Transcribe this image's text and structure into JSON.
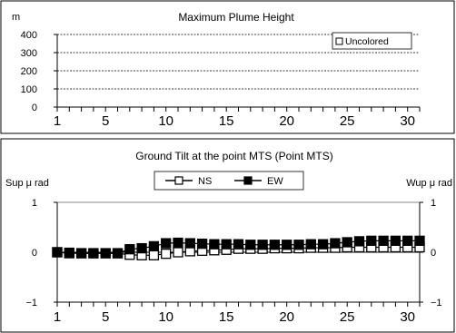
{
  "chart_data": [
    {
      "type": "bar",
      "title": "Maximum Plume Height",
      "ylabel": "m",
      "ylim": [
        0,
        400
      ],
      "yticks": [
        "400",
        "300",
        "200",
        "100",
        "0"
      ],
      "xticks": [
        "1",
        "5",
        "10",
        "15",
        "20",
        "25",
        "30"
      ],
      "xlim": [
        1,
        31
      ],
      "grid": true,
      "legend_position": "top-right",
      "series": [
        {
          "name": "Uncolored",
          "color": "#ffffff",
          "values": []
        }
      ]
    },
    {
      "type": "line",
      "title": "Ground Tilt at the point MTS (Point MTS)",
      "ylabel_left": "Sup μ rad",
      "ylabel_right": "Wup μ rad",
      "ylim": [
        -1,
        1
      ],
      "yticks_left": [
        "1",
        "0",
        "−1"
      ],
      "yticks_right": [
        "1",
        "0",
        "−1"
      ],
      "xticks": [
        "1",
        "5",
        "10",
        "15",
        "20",
        "25",
        "30"
      ],
      "xlim": [
        1,
        31
      ],
      "legend_position": "top-center",
      "x": [
        1,
        2,
        3,
        4,
        5,
        6,
        7,
        8,
        9,
        10,
        11,
        12,
        13,
        14,
        15,
        16,
        17,
        18,
        19,
        20,
        21,
        22,
        23,
        24,
        25,
        26,
        27,
        28,
        29,
        30,
        31
      ],
      "series": [
        {
          "name": "NS",
          "marker": "open-square",
          "values": [
            0,
            -0.02,
            -0.02,
            -0.02,
            -0.02,
            -0.02,
            -0.05,
            -0.06,
            -0.06,
            -0.03,
            0.0,
            0.02,
            0.03,
            0.04,
            0.05,
            0.07,
            0.07,
            0.07,
            0.08,
            0.08,
            0.08,
            0.09,
            0.09,
            0.09,
            0.1,
            0.1,
            0.1,
            0.1,
            0.1,
            0.1,
            0.1
          ]
        },
        {
          "name": "EW",
          "marker": "filled-square",
          "values": [
            0,
            -0.01,
            -0.02,
            -0.02,
            -0.02,
            -0.02,
            0.06,
            0.08,
            0.12,
            0.18,
            0.19,
            0.18,
            0.17,
            0.16,
            0.16,
            0.16,
            0.15,
            0.15,
            0.15,
            0.15,
            0.15,
            0.16,
            0.16,
            0.18,
            0.2,
            0.22,
            0.23,
            0.23,
            0.23,
            0.23,
            0.23
          ]
        }
      ]
    }
  ]
}
